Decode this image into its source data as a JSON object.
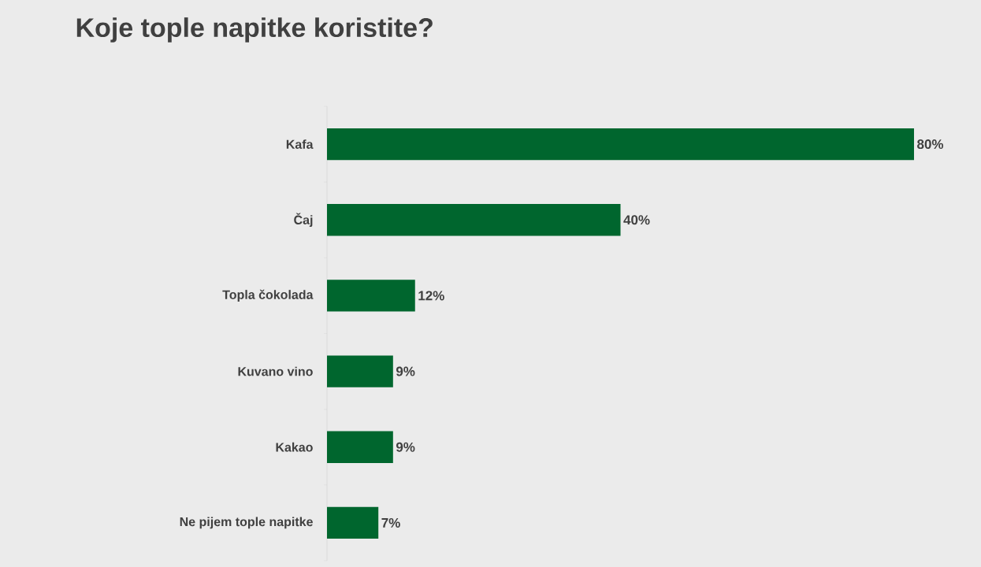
{
  "chart_data": {
    "type": "bar",
    "orientation": "horizontal",
    "title": "Koje tople napitke koristite?",
    "categories": [
      "Kafa",
      "Čaj",
      "Topla čokolada",
      "Kuvano vino",
      "Kakao",
      "Ne pijem tople napitke"
    ],
    "values": [
      80,
      40,
      12,
      9,
      9,
      7
    ],
    "value_labels": [
      "80%",
      "40%",
      "12%",
      "9%",
      "9%",
      "7%"
    ],
    "color": "#00662e"
  }
}
